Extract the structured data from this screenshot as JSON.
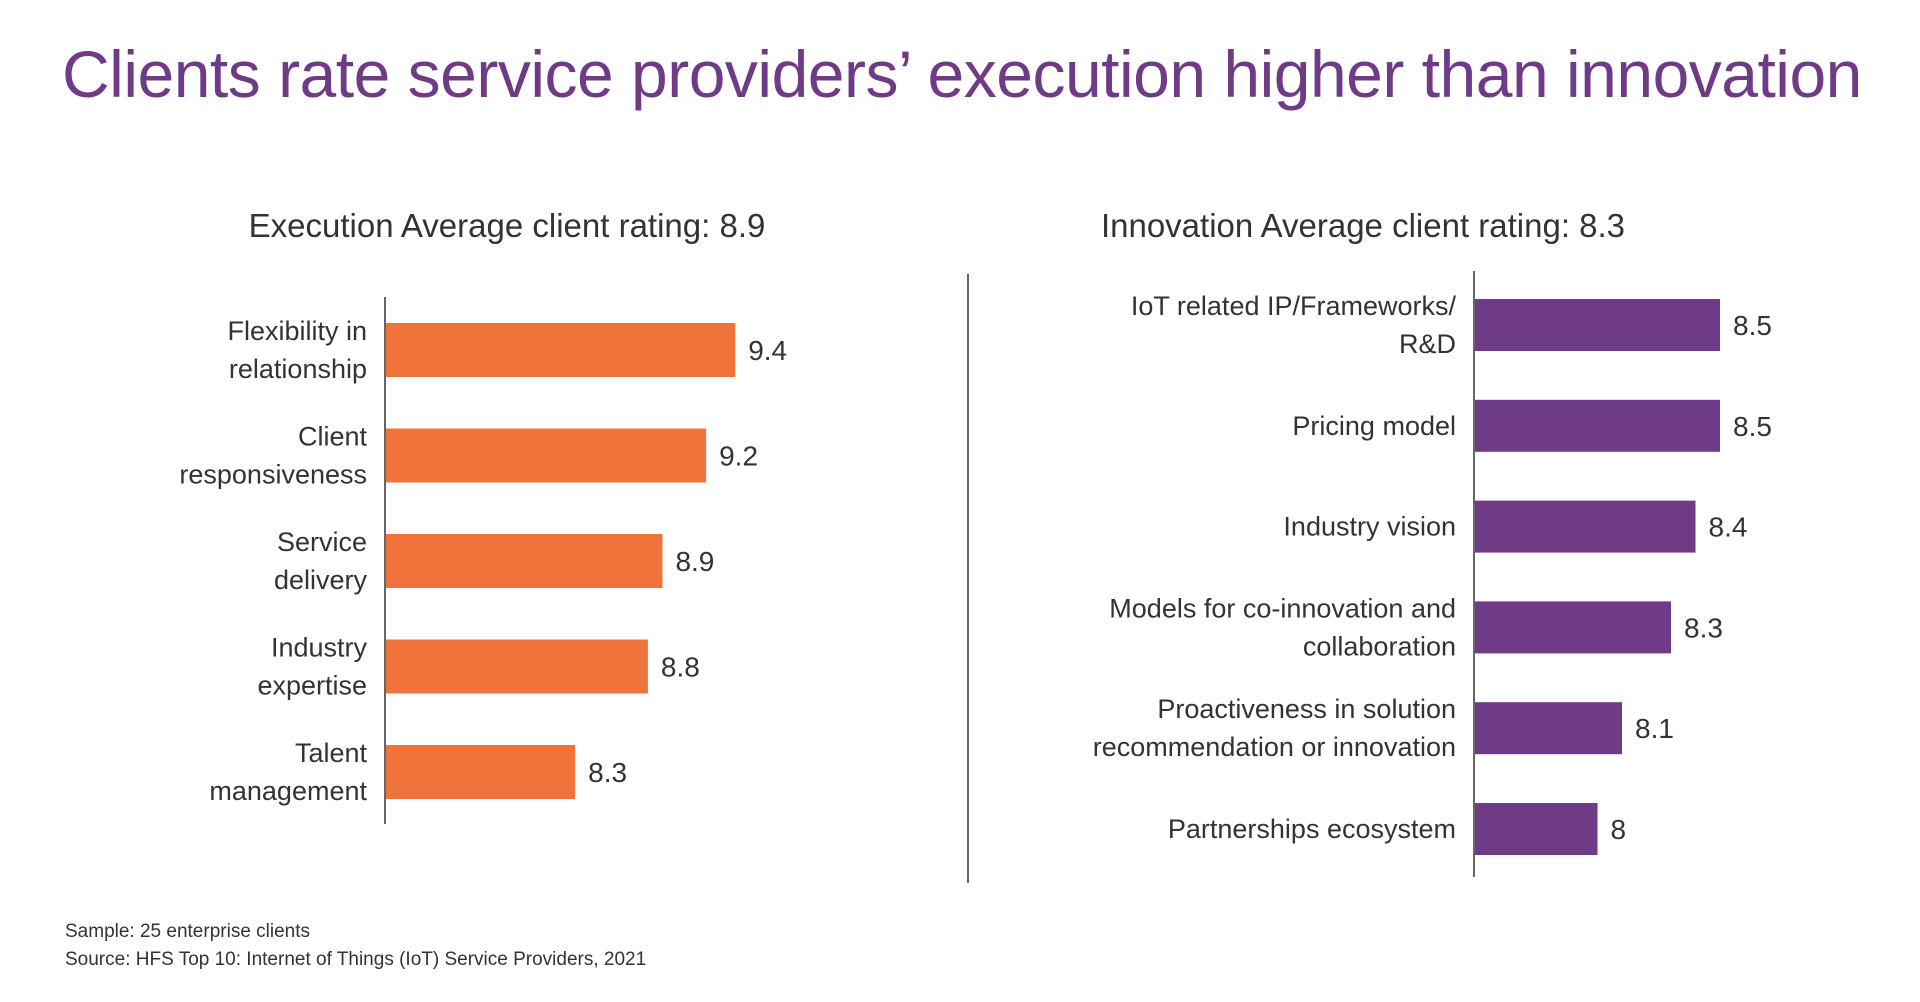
{
  "title": "Clients rate service providers’ execution higher than innovation",
  "footer": {
    "sample": "Sample: 25 enterprise clients",
    "source": "Source: HFS Top 10: Internet of Things (IoT) Service Providers, 2021"
  },
  "colors": {
    "title": "#6f3a86",
    "execution_bar": "#f0733b",
    "innovation_bar": "#6f3a86",
    "axis": "#333333"
  },
  "chart_data": [
    {
      "type": "bar",
      "orientation": "horizontal",
      "title": "Execution Average client rating: 8.9",
      "categories": [
        [
          "Flexibility in",
          "relationship"
        ],
        [
          "Client",
          "responsiveness"
        ],
        [
          "Service",
          "delivery"
        ],
        [
          "Industry",
          "expertise"
        ],
        [
          "Talent",
          "management"
        ]
      ],
      "values": [
        9.4,
        9.2,
        8.9,
        8.8,
        8.3
      ],
      "value_labels": [
        "9.4",
        "9.2",
        "8.9",
        "8.8",
        "8.3"
      ],
      "color": "#f0733b",
      "grid": false,
      "legend": "none"
    },
    {
      "type": "bar",
      "orientation": "horizontal",
      "title": "Innovation Average client rating: 8.3",
      "categories": [
        [
          "IoT related IP/Frameworks/",
          "R&D"
        ],
        [
          "Pricing model"
        ],
        [
          "Industry vision"
        ],
        [
          "Models for co-innovation and",
          "collaboration"
        ],
        [
          "Proactiveness in solution",
          "recommendation or innovation"
        ],
        [
          "Partnerships ecosystem"
        ]
      ],
      "values": [
        8.5,
        8.5,
        8.4,
        8.3,
        8.1,
        8
      ],
      "value_labels": [
        "8.5",
        "8.5",
        "8.4",
        "8.3",
        "8.1",
        "8"
      ],
      "color": "#6f3a86",
      "grid": false,
      "legend": "none"
    }
  ]
}
